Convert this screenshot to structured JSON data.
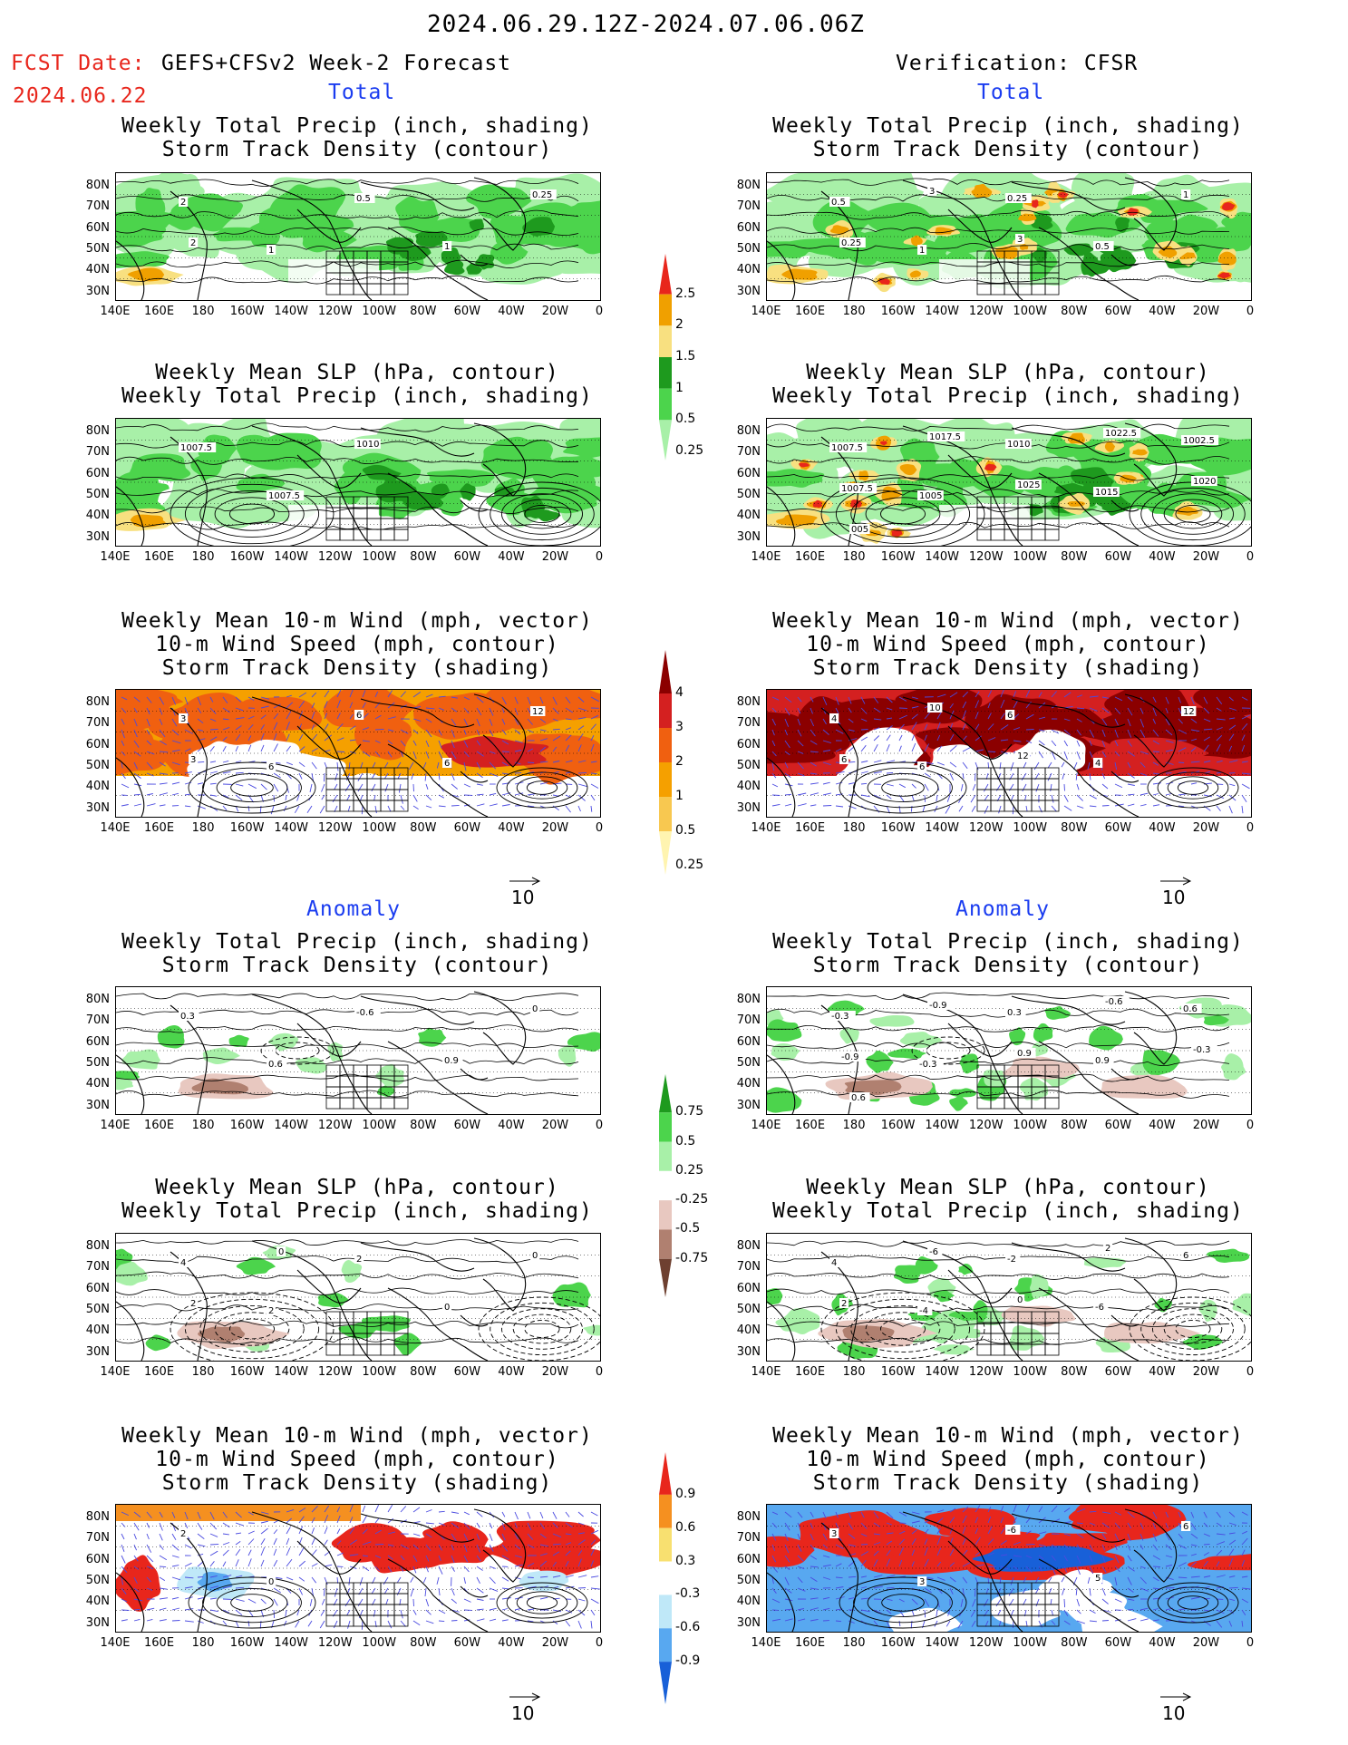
{
  "header": {
    "period": "2024.06.29.12Z-2024.07.06.06Z",
    "fcst_label": "FCST Date:",
    "model": "GEFS+CFSv2 Week-2 Forecast",
    "fcst_date": "2024.06.22",
    "verification": "Verification: CFSR"
  },
  "sections": {
    "total_left": "Total",
    "total_right": "Total",
    "anomaly_left": "Anomaly",
    "anomaly_right": "Anomaly"
  },
  "panel_titles": {
    "precip_storm": [
      "Weekly Total Precip (inch, shading)",
      "Storm Track Density (contour)"
    ],
    "slp_precip": [
      "Weekly Mean SLP (hPa, contour)",
      "Weekly Total Precip (inch, shading)"
    ],
    "wind_storm": [
      "Weekly Mean 10-m Wind (mph, vector)",
      "10-m Wind Speed (mph, contour)",
      "Storm Track Density (shading)"
    ]
  },
  "axes": {
    "lat_labels": [
      "80N",
      "70N",
      "60N",
      "50N",
      "40N",
      "30N"
    ],
    "lon_labels": [
      "140E",
      "160E",
      "180",
      "160W",
      "140W",
      "120W",
      "100W",
      "80W",
      "60W",
      "40W",
      "20W",
      "0"
    ]
  },
  "vector_ref": "10",
  "colorbars": {
    "precip_total": {
      "labels": [
        "2.5",
        "2",
        "1.5",
        "1",
        "0.5",
        "0.25"
      ],
      "colors": [
        "#e8261c",
        "#f0a000",
        "#f8e080",
        "#1e9a1e",
        "#4cd44c",
        "#a8f0a8"
      ]
    },
    "storm_total": {
      "labels": [
        "4",
        "3",
        "2",
        "1",
        "0.5",
        "0.25"
      ],
      "colors": [
        "#8b0000",
        "#d42020",
        "#f06010",
        "#f5a000",
        "#f8c850",
        "#fff4b0"
      ]
    },
    "precip_anom": {
      "labels": [
        "0.75",
        "0.5",
        "0.25",
        "-0.25",
        "-0.5",
        "-0.75"
      ],
      "colors": [
        "#1e9a1e",
        "#4cd44c",
        "#a8f0a8",
        "#ffffff",
        "#e8c8c0",
        "#b08070",
        "#6e4030"
      ]
    },
    "storm_anom": {
      "labels": [
        "0.9",
        "0.6",
        "0.3",
        "-0.3",
        "-0.6",
        "-0.9"
      ],
      "colors": [
        "#e8261c",
        "#f59020",
        "#f8e070",
        "#ffffff",
        "#bfe8f8",
        "#58a8f0",
        "#1860d8"
      ]
    }
  },
  "panels": [
    {
      "id": "fcst-total-precip-storm",
      "labels": [
        "2",
        "1",
        "0.5",
        "1",
        "0.25",
        "2"
      ]
    },
    {
      "id": "verif-total-precip-storm",
      "labels": [
        "0.5",
        "1",
        "0.25",
        "0.5",
        "1",
        "0.25",
        "3",
        "3"
      ]
    },
    {
      "id": "fcst-total-slp-precip",
      "labels": [
        "1007.5",
        "1007.5",
        "1010"
      ]
    },
    {
      "id": "verif-total-slp-precip",
      "labels": [
        "1007.5",
        "1005",
        "1010",
        "1015",
        "1002.5",
        "1007.5",
        "1017.5",
        "1025",
        "1022.5",
        "1020",
        "005"
      ]
    },
    {
      "id": "fcst-total-wind-storm",
      "labels": [
        "3",
        "6",
        "6",
        "6",
        "12",
        "3"
      ]
    },
    {
      "id": "verif-total-wind-storm",
      "labels": [
        "4",
        "6",
        "6",
        "4",
        "12",
        "6",
        "10",
        "12"
      ]
    },
    {
      "id": "fcst-anom-precip-storm",
      "labels": [
        "0.3",
        "0.6",
        "-0.6",
        "0.9",
        "0"
      ]
    },
    {
      "id": "verif-anom-precip-storm",
      "labels": [
        "-0.3",
        "-0.3",
        "0.3",
        "0.9",
        "0.6",
        "-0.9",
        "-0.9",
        "0.9",
        "-0.6",
        "-0.3",
        "0.6"
      ]
    },
    {
      "id": "fcst-anom-slp-precip",
      "labels": [
        "4",
        "2",
        "2",
        "0",
        "0",
        "2",
        "0"
      ]
    },
    {
      "id": "verif-anom-slp-precip",
      "labels": [
        "4",
        "-4",
        "-2",
        "-6",
        "6",
        "2",
        "-6",
        "0",
        "2"
      ]
    },
    {
      "id": "fcst-anom-wind-storm",
      "labels": [
        "2",
        "0"
      ]
    },
    {
      "id": "verif-anom-wind-storm",
      "labels": [
        "3",
        "3",
        "-6",
        "5",
        "6"
      ]
    }
  ]
}
